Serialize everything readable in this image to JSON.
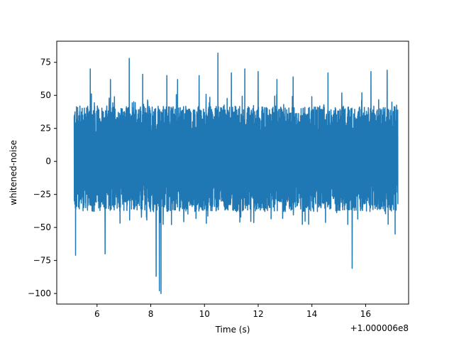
{
  "chart_data": {
    "type": "line",
    "xlabel": "Time (s)",
    "ylabel": "whitened-noise",
    "offset_label": "+1.000006e8",
    "xlim": [
      4.5,
      17.6
    ],
    "ylim": [
      -108,
      91
    ],
    "x_start": 5.15,
    "x_end": 17.2,
    "xticks": [
      6,
      8,
      10,
      12,
      14,
      16
    ],
    "xtick_labels": [
      "6",
      "8",
      "10",
      "12",
      "14",
      "16"
    ],
    "yticks": [
      -100,
      -75,
      -50,
      -25,
      0,
      25,
      50,
      75
    ],
    "ytick_labels": [
      "−100",
      "−75",
      "−50",
      "−25",
      "0",
      "25",
      "50",
      "75"
    ],
    "grid": false,
    "series": [
      {
        "color": "#1f77b4",
        "typical_range": [
          -38,
          42
        ],
        "spikes": [
          {
            "x": 5.2,
            "y": -71
          },
          {
            "x": 5.75,
            "y": 70
          },
          {
            "x": 6.3,
            "y": -70
          },
          {
            "x": 6.5,
            "y": 62
          },
          {
            "x": 7.2,
            "y": 78
          },
          {
            "x": 7.7,
            "y": 66
          },
          {
            "x": 8.2,
            "y": -87
          },
          {
            "x": 8.32,
            "y": -98
          },
          {
            "x": 8.38,
            "y": -100
          },
          {
            "x": 8.6,
            "y": 65
          },
          {
            "x": 9.0,
            "y": 62
          },
          {
            "x": 9.8,
            "y": 65
          },
          {
            "x": 10.5,
            "y": 82
          },
          {
            "x": 11.0,
            "y": 67
          },
          {
            "x": 11.5,
            "y": 70
          },
          {
            "x": 12.0,
            "y": 68
          },
          {
            "x": 12.7,
            "y": 62
          },
          {
            "x": 13.3,
            "y": 64
          },
          {
            "x": 14.6,
            "y": 67
          },
          {
            "x": 15.5,
            "y": -81
          },
          {
            "x": 16.2,
            "y": 68
          },
          {
            "x": 16.8,
            "y": 69
          },
          {
            "x": 17.1,
            "y": -55
          }
        ]
      }
    ]
  }
}
